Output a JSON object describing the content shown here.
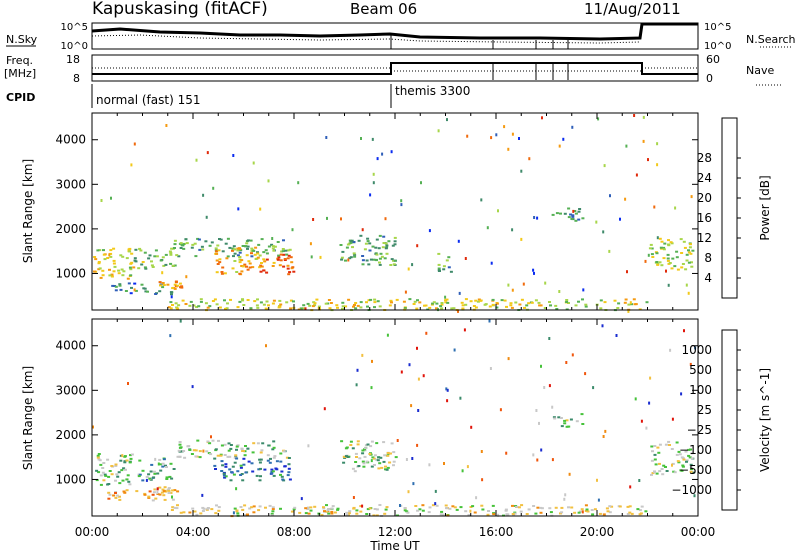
{
  "header": {
    "title": "Kapuskasing (fitACF)",
    "beam": "Beam 06",
    "date": "11/Aug/2011"
  },
  "strips": {
    "nsky_label": "N.Sky",
    "nsky_ticks": [
      "10^5",
      "10^0"
    ],
    "nsearch_label": "N.Search",
    "nsearch_ticks": [
      "10^5",
      "10^0"
    ],
    "freq_label": "Freq.",
    "freq_unit": "[MHz]",
    "freq_ticks": [
      "18",
      "8"
    ],
    "nave_label": "Nave",
    "nave_ticks": [
      "60",
      "0"
    ],
    "cpid_label": "CPID",
    "modes": [
      {
        "name": "normal (fast) 151",
        "start": "00:00"
      },
      {
        "name": "themis 3300",
        "start": "12:00"
      }
    ]
  },
  "xaxis": {
    "label": "Time UT",
    "ticks": [
      "00:00",
      "04:00",
      "08:00",
      "12:00",
      "16:00",
      "20:00",
      "00:00"
    ]
  },
  "chart_data": [
    {
      "type": "heatmap",
      "name": "power_panel",
      "ylabel": "Slant Range [km]",
      "yticks": [
        1000,
        2000,
        3000,
        4000
      ],
      "ylim": [
        180,
        4600
      ],
      "xlim_hours": [
        0,
        24
      ],
      "colorbar": {
        "label": "Power [dB]",
        "ticks": [
          "4",
          "8",
          "12",
          "16",
          "20",
          "24",
          "28"
        ],
        "colors": [
          "#0a2cf0",
          "#2f5fb8",
          "#3f8a6a",
          "#55b054",
          "#a7d64a",
          "#f2c919",
          "#f59a10",
          "#f06a0c",
          "#e02a0a"
        ]
      },
      "echo_regions": [
        {
          "t": [
            0.0,
            1.6
          ],
          "r": [
            900,
            1600
          ],
          "level": 0.55
        },
        {
          "t": [
            0.6,
            3.2
          ],
          "r": [
            550,
            800
          ],
          "level": 0.2
        },
        {
          "t": [
            1.6,
            3.4
          ],
          "r": [
            1100,
            1600
          ],
          "level": 0.4
        },
        {
          "t": [
            2.6,
            3.6
          ],
          "r": [
            650,
            850
          ],
          "level": 0.75
        },
        {
          "t": [
            3.2,
            7.8
          ],
          "r": [
            1400,
            1800
          ],
          "level": 0.35
        },
        {
          "t": [
            4.8,
            6.8
          ],
          "r": [
            1000,
            1600
          ],
          "level": 0.7
        },
        {
          "t": [
            6.6,
            8.0
          ],
          "r": [
            1000,
            1450
          ],
          "level": 0.85
        },
        {
          "t": [
            9.8,
            12.0
          ],
          "r": [
            1200,
            1900
          ],
          "level": 0.35
        },
        {
          "t": [
            13.6,
            14.2
          ],
          "r": [
            1000,
            1500
          ],
          "level": 0.3
        },
        {
          "t": [
            18.2,
            19.4
          ],
          "r": [
            2200,
            2500
          ],
          "level": 0.25
        },
        {
          "t": [
            22.0,
            23.8
          ],
          "r": [
            1100,
            1800
          ],
          "level": 0.5
        },
        {
          "t": [
            3.0,
            22.0
          ],
          "r": [
            200,
            450
          ],
          "level": 0.55
        }
      ]
    },
    {
      "type": "heatmap",
      "name": "velocity_panel",
      "ylabel": "Slant Range [km]",
      "yticks": [
        1000,
        2000,
        3000,
        4000
      ],
      "ylim": [
        180,
        4600
      ],
      "xlim_hours": [
        0,
        24
      ],
      "colorbar": {
        "label": "Velocity [m s^-1]",
        "ticks": [
          "1000",
          "500",
          "100",
          "25",
          "−25",
          "−100",
          "−500",
          "−1000"
        ],
        "colors": [
          "#1a2cd0",
          "#2f6fb0",
          "#3a8a6a",
          "#46c23a",
          "#c8c8c8",
          "#f2c040",
          "#f08a10",
          "#f0560c",
          "#e0140a"
        ]
      },
      "echo_regions": [
        {
          "t": [
            0.0,
            1.6
          ],
          "r": [
            900,
            1600
          ],
          "level": 0.4
        },
        {
          "t": [
            0.6,
            3.2
          ],
          "r": [
            550,
            800
          ],
          "level": 0.65
        },
        {
          "t": [
            2.4,
            3.6
          ],
          "r": [
            650,
            850
          ],
          "level": 0.6
        },
        {
          "t": [
            1.8,
            3.2
          ],
          "r": [
            1000,
            1500
          ],
          "level": 0.3
        },
        {
          "t": [
            3.2,
            7.8
          ],
          "r": [
            1500,
            1900
          ],
          "level": 0.45
        },
        {
          "t": [
            4.8,
            7.8
          ],
          "r": [
            1000,
            1500
          ],
          "level": 0.15
        },
        {
          "t": [
            9.8,
            12.0
          ],
          "r": [
            1200,
            1900
          ],
          "level": 0.45
        },
        {
          "t": [
            18.2,
            19.4
          ],
          "r": [
            2200,
            2500
          ],
          "level": 0.45
        },
        {
          "t": [
            22.0,
            23.8
          ],
          "r": [
            1100,
            1900
          ],
          "level": 0.45
        },
        {
          "t": [
            3.0,
            22.0
          ],
          "r": [
            200,
            450
          ],
          "level": 0.55
        }
      ]
    }
  ]
}
